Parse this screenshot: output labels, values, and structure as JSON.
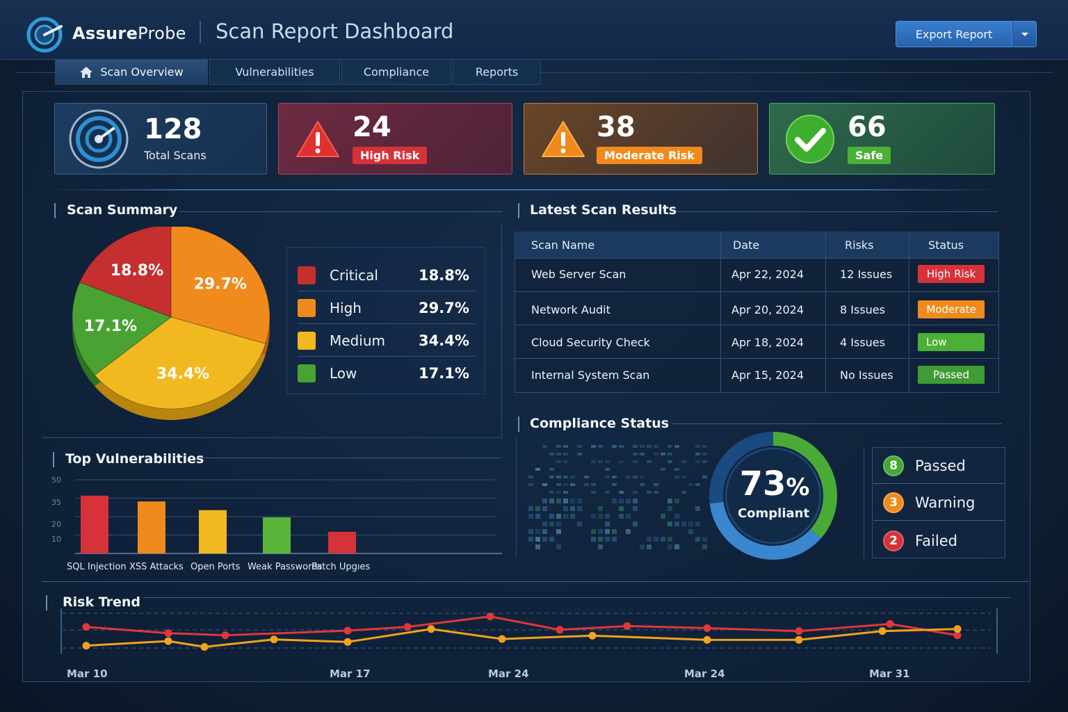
{
  "app": {
    "brand_bold": "Assure",
    "brand_rest": "Probe",
    "title": "Scan Report Dashboard",
    "export_label": "Export Report"
  },
  "tabs": [
    {
      "label": "Scan Overview"
    },
    {
      "label": "Vulnerabilities"
    },
    {
      "label": "Compliance"
    },
    {
      "label": "Reports"
    }
  ],
  "stats": {
    "total": {
      "value": "128",
      "label": "Total Scans"
    },
    "high": {
      "value": "24",
      "label": "High Risk"
    },
    "moderate": {
      "value": "38",
      "label": "Moderate Risk"
    },
    "safe": {
      "value": "66",
      "label": "Safe"
    }
  },
  "summary": {
    "title": "Scan Summary",
    "legend": [
      {
        "name": "Critical",
        "value": "18.8%"
      },
      {
        "name": "High",
        "value": "29.7%"
      },
      {
        "name": "Medium",
        "value": "34.4%"
      },
      {
        "name": "Low",
        "value": "17.1%"
      }
    ]
  },
  "results": {
    "title": "Latest Scan Results",
    "headers": {
      "name": "Scan Name",
      "date": "Date",
      "risks": "Risks",
      "status": "Status"
    },
    "rows": [
      {
        "name": "Web Server Scan",
        "date": "Apr 22, 2024",
        "risks": "12 Issues",
        "status": "High Risk"
      },
      {
        "name": "Network Audit",
        "date": "Apr 20, 2024",
        "risks": "8 Issues",
        "status": "Moderate"
      },
      {
        "name": "Cloud Security Check",
        "date": "Apr 18, 2024",
        "risks": "4 Issues",
        "status": "Low"
      },
      {
        "name": "Internal System Scan",
        "date": "Apr 15, 2024",
        "risks": "No Issues",
        "status": "Passed"
      }
    ]
  },
  "compliance": {
    "title": "Compliance Status",
    "percent_num": "73",
    "percent_sign": "%",
    "percent_value": 73,
    "label": "Compliant",
    "items": [
      {
        "count": "8",
        "label": "Passed"
      },
      {
        "count": "3",
        "label": "Warning"
      },
      {
        "count": "2",
        "label": "Failed"
      }
    ]
  },
  "vulns": {
    "title": "Top Vulnerabilities"
  },
  "trend": {
    "title": "Risk Trend"
  },
  "colors": {
    "critical": "#c62f2f",
    "high": "#f08a1c",
    "medium": "#f2b81f",
    "low": "#4aa232",
    "danger": "#d6323a",
    "warning": "#f08a1c",
    "ok": "#4caf36",
    "accent": "#3a7fd1"
  },
  "chart_data": [
    {
      "type": "pie",
      "title": "Scan Summary",
      "categories": [
        "Critical",
        "High",
        "Medium",
        "Low"
      ],
      "values": [
        18.8,
        29.7,
        34.4,
        17.1
      ],
      "labels": [
        "18.8%",
        "29.7%",
        "34.4%",
        "17.1%"
      ]
    },
    {
      "type": "bar",
      "title": "Top Vulnerabilities",
      "categories": [
        "SQL Injection",
        "XSS Attacks",
        "Open Ports",
        "Weak Passwords",
        "Patch Upgıes"
      ],
      "values": [
        40,
        36,
        30,
        25,
        15
      ],
      "yticks": [
        "10",
        "20",
        "35",
        "50"
      ],
      "ylim": [
        0,
        50
      ]
    },
    {
      "type": "line",
      "title": "Risk Trend",
      "x_ticks": [
        "Mar 10",
        "Mar 17",
        "Mar 24",
        "Mar 24",
        "Mar 31"
      ],
      "series": [
        {
          "name": "red",
          "values": [
            6.4,
            4.9,
            4.4,
            5.5,
            6.4,
            8.9,
            5.7,
            6.6,
            6.1,
            5.4,
            7.1,
            4.4,
            5.4,
            3.1,
            6.8,
            4.8,
            2.2
          ]
        },
        {
          "name": "orange",
          "values": [
            1.9,
            3.0,
            1.6,
            3.4,
            2.8,
            5.9,
            3.5,
            4.3,
            3.3,
            3.3,
            5.4,
            5.9,
            4.6,
            7.2,
            4.1,
            4.5,
            6.1
          ]
        }
      ],
      "ylim": [
        0,
        10
      ]
    }
  ]
}
